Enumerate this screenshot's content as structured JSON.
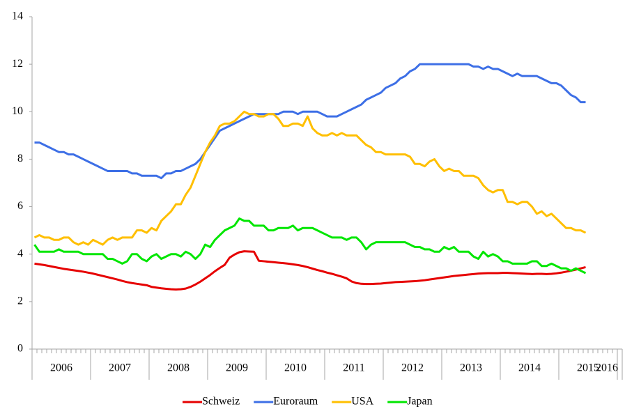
{
  "chart_data": {
    "type": "line",
    "categories": [
      null,
      null,
      null,
      null,
      null,
      null,
      null,
      null,
      null,
      null,
      null,
      null,
      null,
      null,
      null,
      null,
      null,
      null,
      null,
      null,
      null,
      null,
      null,
      null,
      null,
      null,
      null,
      null,
      null,
      null,
      null,
      null,
      null,
      null,
      null,
      null,
      null,
      null,
      null,
      null,
      null,
      null,
      null,
      null,
      null,
      null,
      null,
      null,
      null,
      null,
      null,
      null,
      null,
      null,
      null,
      null,
      null,
      null,
      null,
      null,
      null,
      null,
      null,
      null,
      null,
      null,
      null,
      null,
      null,
      null,
      null,
      null,
      null,
      null,
      null,
      null,
      null,
      null,
      null,
      null,
      null,
      null,
      null,
      null,
      null,
      null,
      null,
      null,
      null,
      null,
      null,
      null,
      null,
      null,
      null,
      null,
      null,
      null,
      null,
      null,
      null,
      null,
      null,
      null,
      null,
      null,
      null,
      null,
      null,
      null,
      null,
      null,
      null,
      null,
      null,
      null,
      null,
      null,
      null,
      null,
      null
    ],
    "x_groups": [
      "2006",
      "2007",
      "2008",
      "2009",
      "2010",
      "2011",
      "2012",
      "2013",
      "2014",
      "2015",
      "2016"
    ],
    "ylim": [
      0,
      14
    ],
    "yticks": [
      0,
      2,
      4,
      6,
      8,
      10,
      12,
      14
    ],
    "grid": false,
    "legend": "bottom",
    "series": [
      {
        "name": "Schweiz",
        "color": "#e60000",
        "values": [
          3.6,
          3.57,
          3.54,
          3.5,
          3.46,
          3.42,
          3.38,
          3.35,
          3.32,
          3.29,
          3.26,
          3.22,
          3.18,
          3.13,
          3.08,
          3.03,
          2.98,
          2.93,
          2.87,
          2.82,
          2.78,
          2.75,
          2.72,
          2.69,
          2.62,
          2.59,
          2.56,
          2.54,
          2.52,
          2.51,
          2.52,
          2.55,
          2.62,
          2.72,
          2.84,
          2.98,
          3.12,
          3.28,
          3.42,
          3.55,
          3.85,
          3.98,
          4.08,
          4.12,
          4.11,
          4.1,
          3.72,
          3.7,
          3.68,
          3.66,
          3.64,
          3.62,
          3.6,
          3.57,
          3.54,
          3.5,
          3.45,
          3.39,
          3.33,
          3.28,
          3.22,
          3.17,
          3.11,
          3.05,
          2.98,
          2.85,
          2.78,
          2.75,
          2.74,
          2.74,
          2.75,
          2.76,
          2.78,
          2.8,
          2.82,
          2.83,
          2.84,
          2.85,
          2.86,
          2.88,
          2.9,
          2.93,
          2.96,
          2.99,
          3.02,
          3.05,
          3.08,
          3.1,
          3.12,
          3.14,
          3.16,
          3.18,
          3.19,
          3.2,
          3.2,
          3.2,
          3.21,
          3.21,
          3.2,
          3.19,
          3.18,
          3.17,
          3.16,
          3.17,
          3.17,
          3.16,
          3.17,
          3.19,
          3.22,
          3.26,
          3.3,
          3.35,
          3.4,
          3.45,
          null,
          null,
          null,
          null,
          null,
          null,
          null
        ]
      },
      {
        "name": "Euroraum",
        "color": "#3d6fe6",
        "values": [
          8.7,
          8.7,
          8.6,
          8.5,
          8.4,
          8.3,
          8.3,
          8.2,
          8.2,
          8.1,
          8.0,
          7.9,
          7.8,
          7.7,
          7.6,
          7.5,
          7.5,
          7.5,
          7.5,
          7.5,
          7.4,
          7.4,
          7.3,
          7.3,
          7.3,
          7.3,
          7.2,
          7.4,
          7.4,
          7.5,
          7.5,
          7.6,
          7.7,
          7.8,
          8.0,
          8.3,
          8.6,
          8.9,
          9.2,
          9.3,
          9.4,
          9.5,
          9.6,
          9.7,
          9.8,
          9.9,
          9.9,
          9.9,
          9.9,
          9.9,
          9.9,
          10.0,
          10.0,
          10.0,
          9.9,
          10.0,
          10.0,
          10.0,
          10.0,
          9.9,
          9.8,
          9.8,
          9.8,
          9.9,
          10.0,
          10.1,
          10.2,
          10.3,
          10.5,
          10.6,
          10.7,
          10.8,
          11.0,
          11.1,
          11.2,
          11.4,
          11.5,
          11.7,
          11.8,
          12.0,
          12.0,
          12.0,
          12.0,
          12.0,
          12.0,
          12.0,
          12.0,
          12.0,
          12.0,
          12.0,
          11.9,
          11.9,
          11.8,
          11.9,
          11.8,
          11.8,
          11.7,
          11.6,
          11.5,
          11.6,
          11.5,
          11.5,
          11.5,
          11.5,
          11.4,
          11.3,
          11.2,
          11.2,
          11.1,
          10.9,
          10.7,
          10.6,
          10.4,
          10.4,
          null,
          null,
          null,
          null,
          null,
          null,
          null
        ]
      },
      {
        "name": "USA",
        "color": "#ffbf00",
        "values": [
          4.7,
          4.8,
          4.7,
          4.7,
          4.6,
          4.6,
          4.7,
          4.7,
          4.5,
          4.4,
          4.5,
          4.4,
          4.6,
          4.5,
          4.4,
          4.6,
          4.7,
          4.6,
          4.7,
          4.7,
          4.7,
          5.0,
          5.0,
          4.9,
          5.1,
          5.0,
          5.4,
          5.6,
          5.8,
          6.1,
          6.1,
          6.5,
          6.8,
          7.3,
          7.8,
          8.3,
          8.7,
          9.0,
          9.4,
          9.5,
          9.5,
          9.6,
          9.8,
          10.0,
          9.9,
          9.9,
          9.8,
          9.8,
          9.9,
          9.9,
          9.7,
          9.4,
          9.4,
          9.5,
          9.5,
          9.4,
          9.8,
          9.3,
          9.1,
          9.0,
          9.0,
          9.1,
          9.0,
          9.1,
          9.0,
          9.0,
          9.0,
          8.8,
          8.6,
          8.5,
          8.3,
          8.3,
          8.2,
          8.2,
          8.2,
          8.2,
          8.2,
          8.1,
          7.8,
          7.8,
          7.7,
          7.9,
          8.0,
          7.7,
          7.5,
          7.6,
          7.5,
          7.5,
          7.3,
          7.3,
          7.3,
          7.2,
          6.9,
          6.7,
          6.6,
          6.7,
          6.7,
          6.2,
          6.2,
          6.1,
          6.2,
          6.2,
          6.0,
          5.7,
          5.8,
          5.6,
          5.7,
          5.5,
          5.3,
          5.1,
          5.1,
          5.0,
          5.0,
          4.9,
          null,
          null,
          null,
          null,
          null,
          null,
          null
        ]
      },
      {
        "name": "Japan",
        "color": "#00e600",
        "values": [
          4.4,
          4.1,
          4.1,
          4.1,
          4.1,
          4.2,
          4.1,
          4.1,
          4.1,
          4.1,
          4.0,
          4.0,
          4.0,
          4.0,
          4.0,
          3.8,
          3.8,
          3.7,
          3.6,
          3.7,
          4.0,
          4.0,
          3.8,
          3.7,
          3.9,
          4.0,
          3.8,
          3.9,
          4.0,
          4.0,
          3.9,
          4.1,
          4.0,
          3.8,
          4.0,
          4.4,
          4.3,
          4.6,
          4.8,
          5.0,
          5.1,
          5.2,
          5.5,
          5.4,
          5.4,
          5.2,
          5.2,
          5.2,
          5.0,
          5.0,
          5.1,
          5.1,
          5.1,
          5.2,
          5.0,
          5.1,
          5.1,
          5.1,
          5.0,
          4.9,
          4.8,
          4.7,
          4.7,
          4.7,
          4.6,
          4.7,
          4.7,
          4.5,
          4.2,
          4.4,
          4.5,
          4.5,
          4.5,
          4.5,
          4.5,
          4.5,
          4.5,
          4.4,
          4.3,
          4.3,
          4.2,
          4.2,
          4.1,
          4.1,
          4.3,
          4.2,
          4.3,
          4.1,
          4.1,
          4.1,
          3.9,
          3.8,
          4.1,
          3.9,
          4.0,
          3.9,
          3.7,
          3.7,
          3.6,
          3.6,
          3.6,
          3.6,
          3.7,
          3.7,
          3.5,
          3.5,
          3.6,
          3.5,
          3.4,
          3.4,
          3.3,
          3.4,
          3.3,
          3.2,
          null,
          null,
          null,
          null,
          null,
          null,
          null
        ]
      }
    ]
  }
}
